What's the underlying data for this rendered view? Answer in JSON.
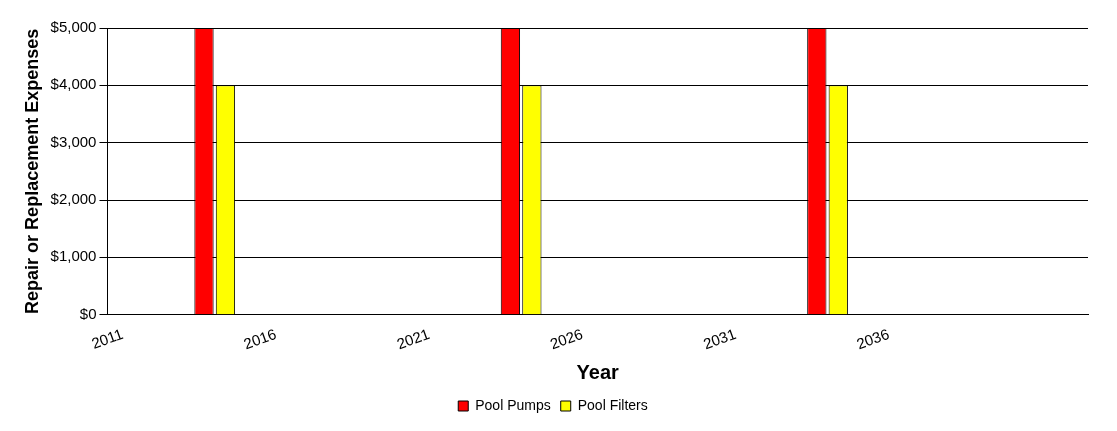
{
  "chart_data": {
    "type": "bar",
    "xlabel": "Year",
    "ylabel": "Repair or Replacement Expenses",
    "categories": [
      "2011",
      null,
      null,
      null,
      null,
      "2016",
      null,
      null,
      null,
      null,
      "2021",
      null,
      null,
      null,
      null,
      "2026",
      null,
      null,
      null,
      null,
      "2031",
      null,
      null,
      null,
      null,
      "2036",
      null,
      null,
      null,
      null,
      null,
      null
    ],
    "series": [
      {
        "name": "Pool Pumps",
        "color": "#ff0000",
        "values": [
          0,
          0,
          0,
          5000,
          0,
          0,
          0,
          0,
          0,
          0,
          0,
          0,
          0,
          5000,
          0,
          0,
          0,
          0,
          0,
          0,
          0,
          0,
          0,
          5000,
          0,
          0,
          0,
          0,
          0,
          0,
          0,
          0
        ]
      },
      {
        "name": "Pool Filters",
        "color": "#ffff00",
        "values": [
          0,
          0,
          0,
          4000,
          0,
          0,
          0,
          0,
          0,
          0,
          0,
          0,
          0,
          4000,
          0,
          0,
          0,
          0,
          0,
          0,
          0,
          0,
          0,
          4000,
          0,
          0,
          0,
          0,
          0,
          0,
          0,
          0
        ]
      }
    ],
    "ylim": [
      0,
      5000
    ],
    "yticks": [
      {
        "value": 0,
        "label": "$0"
      },
      {
        "value": 1000,
        "label": "$1,000"
      },
      {
        "value": 2000,
        "label": "$2,000"
      },
      {
        "value": 3000,
        "label": "$3,000"
      },
      {
        "value": 4000,
        "label": "$4,000"
      },
      {
        "value": 5000,
        "label": "$5,000"
      }
    ],
    "grid": "y",
    "legend": "bottom"
  }
}
